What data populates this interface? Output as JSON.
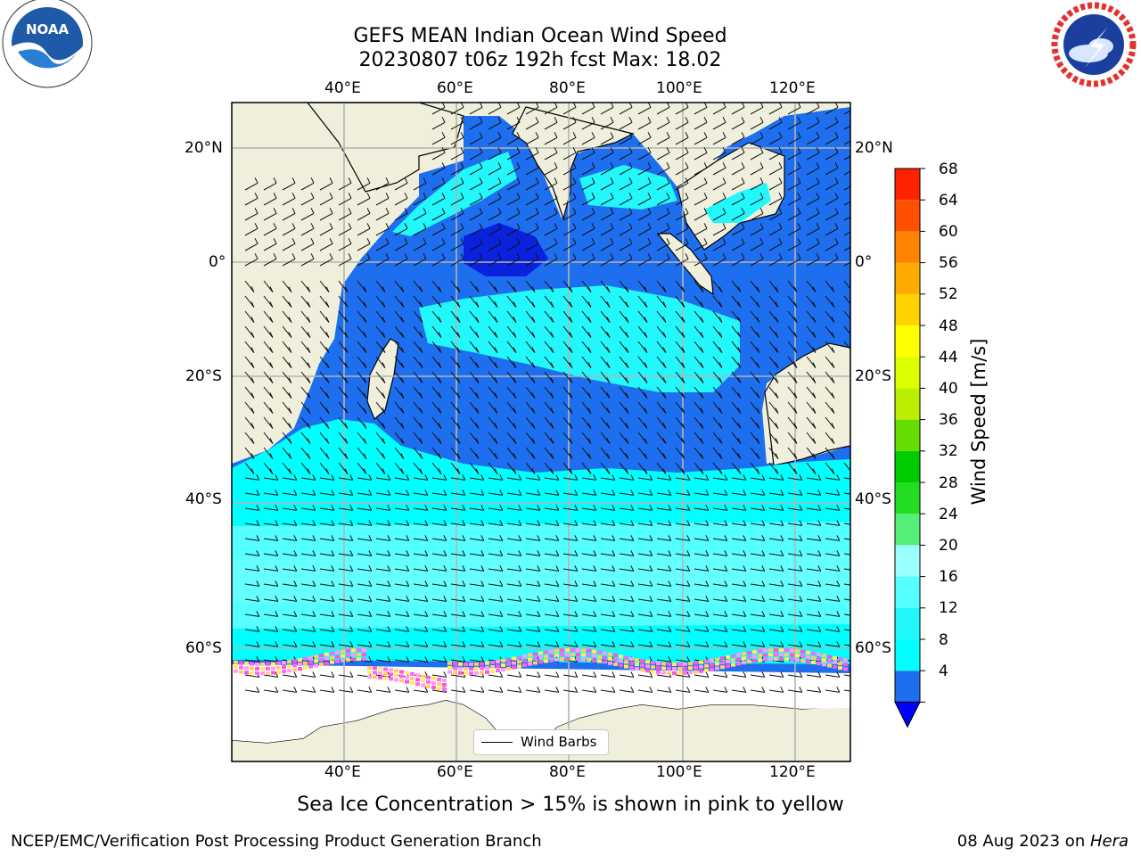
{
  "title": {
    "line1": "GEFS MEAN Indian Ocean Wind Speed",
    "line2": "20230807 t06z 192h fcst   Max: 18.02"
  },
  "logos": {
    "left": {
      "icon": "noaa-logo",
      "text": "NOAA"
    },
    "right": {
      "icon": "national-weather-service-logo"
    }
  },
  "map": {
    "lon_labels": [
      "40°E",
      "60°E",
      "80°E",
      "100°E",
      "120°E"
    ],
    "lat_labels": [
      "20°N",
      "0°",
      "20°S",
      "40°S",
      "60°S"
    ],
    "lon_range": [
      20,
      130
    ],
    "lat_range": [
      -72,
      28
    ]
  },
  "legend": {
    "label": "Wind Barbs"
  },
  "colorbar": {
    "title": "Wind Speed [m/s]",
    "ticks": [
      "4",
      "8",
      "12",
      "16",
      "20",
      "24",
      "28",
      "32",
      "36",
      "40",
      "44",
      "48",
      "52",
      "56",
      "60",
      "64",
      "68"
    ],
    "colors": [
      "#1e6ff0",
      "#00ffff",
      "#22f7fb",
      "#55ffff",
      "#99ffff",
      "#55ee77",
      "#22dd22",
      "#00cc00",
      "#66dd00",
      "#bbee00",
      "#ddff00",
      "#ffff00",
      "#ffd200",
      "#ffaa00",
      "#ff8200",
      "#ff5000",
      "#ff2200",
      "#ff0000"
    ],
    "under_color": "#0000ff"
  },
  "caption": "Sea Ice Concentration > 15% is shown in pink to yellow",
  "footer": {
    "left": "NCEP/EMC/Verification Post Processing Product Generation Branch",
    "right_prefix": "08 Aug 2023 on ",
    "right_host": "Hera"
  }
}
